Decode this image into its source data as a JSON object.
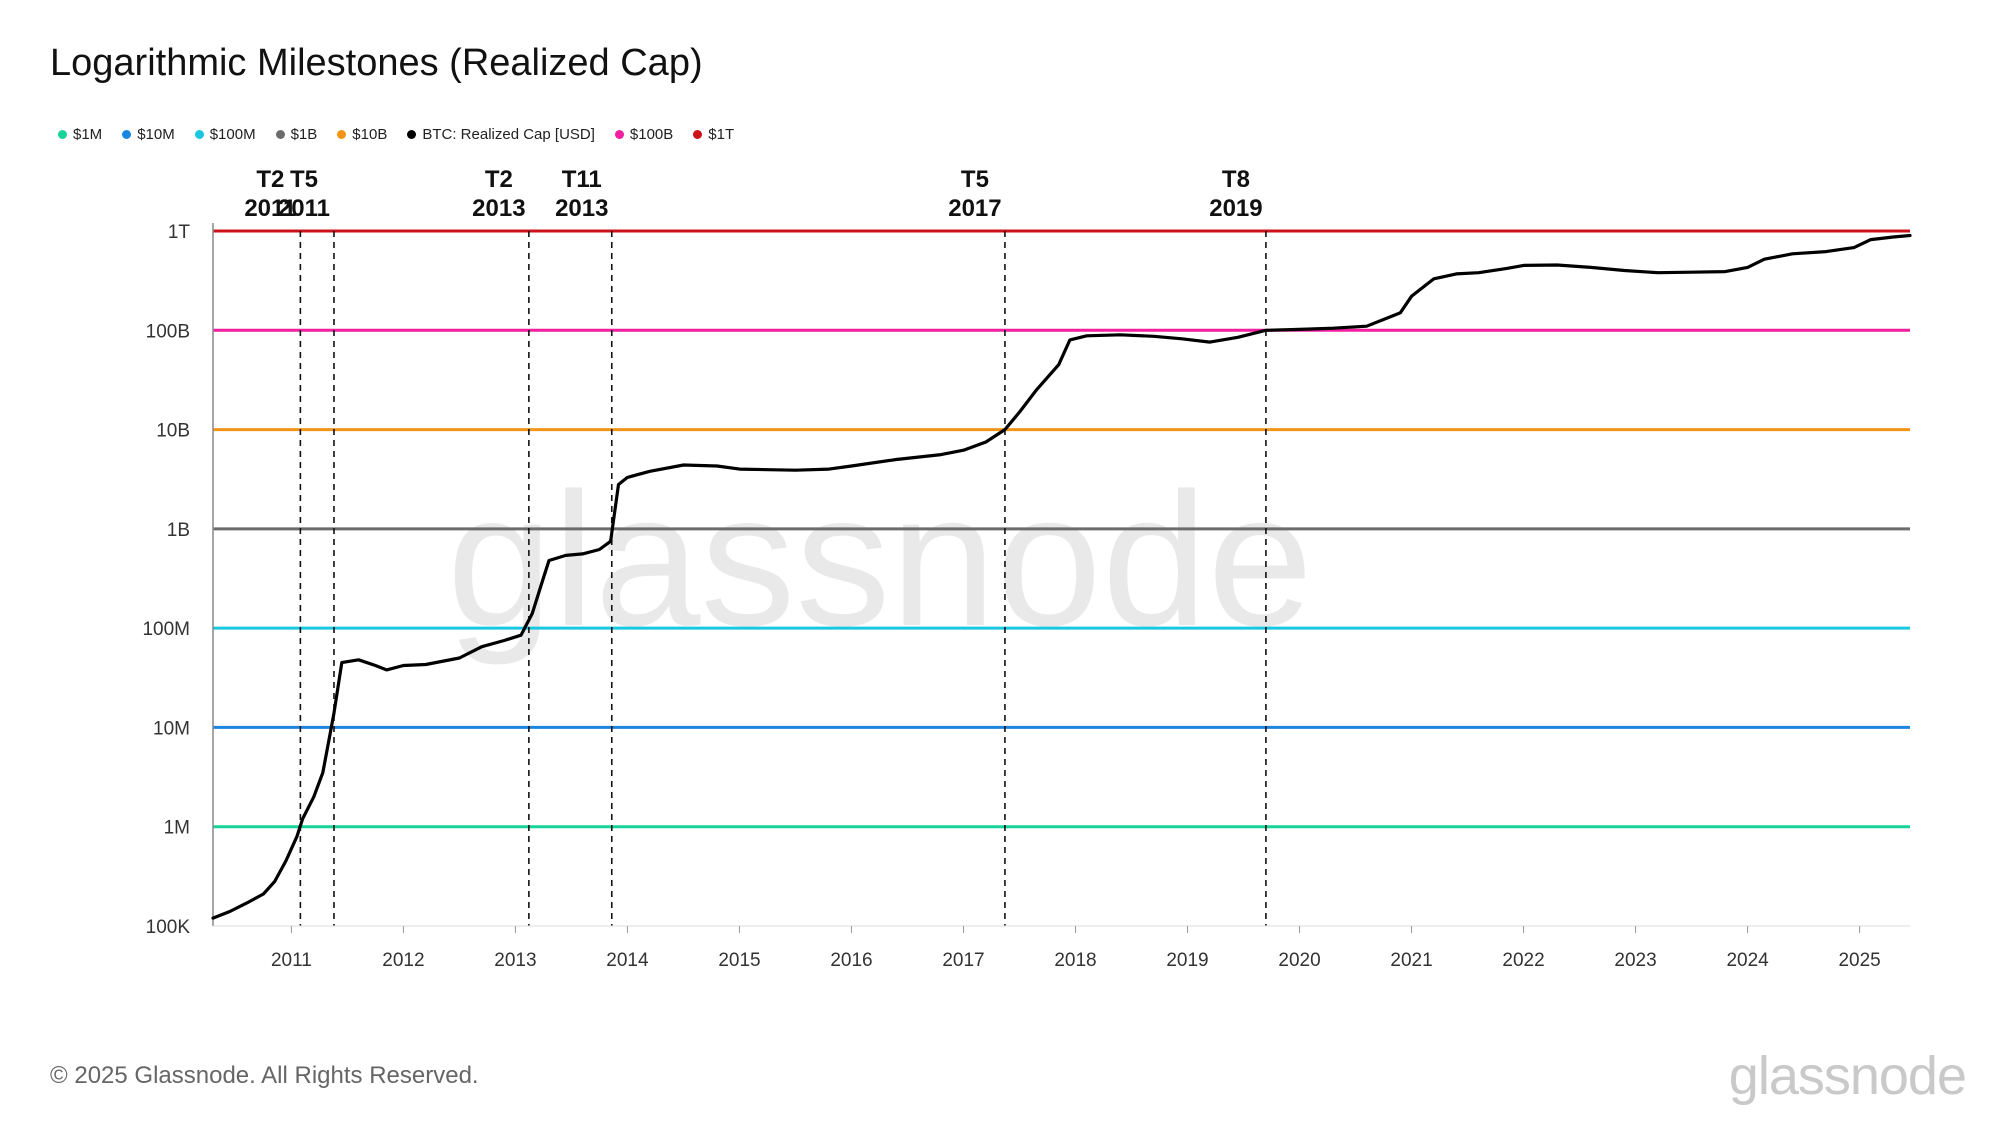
{
  "title": "Logarithmic Milestones (Realized Cap)",
  "watermark": "glassnode",
  "footer": {
    "copyright": "© 2025 Glassnode. All Rights Reserved.",
    "brand": "glassnode"
  },
  "legend": [
    {
      "label": "$1M",
      "color": "#16d39a"
    },
    {
      "label": "$10M",
      "color": "#1b86e0"
    },
    {
      "label": "$100M",
      "color": "#19c7e0"
    },
    {
      "label": "$1B",
      "color": "#6b6b6b"
    },
    {
      "label": "$10B",
      "color": "#f39416"
    },
    {
      "label": "BTC: Realized Cap [USD]",
      "color": "#000000"
    },
    {
      "label": "$100B",
      "color": "#f21fa0"
    },
    {
      "label": "$1T",
      "color": "#cc1119"
    }
  ],
  "chart_data": {
    "type": "line",
    "title": "Logarithmic Milestones (Realized Cap)",
    "xlabel": "",
    "ylabel": "",
    "y_scale": "log",
    "xlim": [
      2010.3,
      2025.45
    ],
    "ylim": [
      100000,
      1000000000000
    ],
    "x_ticks": [
      "2011",
      "2012",
      "2013",
      "2014",
      "2015",
      "2016",
      "2017",
      "2018",
      "2019",
      "2020",
      "2021",
      "2022",
      "2023",
      "2024",
      "2025"
    ],
    "y_ticks": [
      {
        "value": 100000,
        "label": "100K"
      },
      {
        "value": 1000000,
        "label": "1M"
      },
      {
        "value": 10000000,
        "label": "10M"
      },
      {
        "value": 100000000,
        "label": "100M"
      },
      {
        "value": 1000000000,
        "label": "1B"
      },
      {
        "value": 10000000000,
        "label": "10B"
      },
      {
        "value": 100000000000,
        "label": "100B"
      },
      {
        "value": 1000000000000,
        "label": "1T"
      }
    ],
    "grid": false,
    "legend_position": "top-left",
    "thresholds": [
      {
        "name": "$1M",
        "value": 1000000,
        "color": "#16d39a"
      },
      {
        "name": "$10M",
        "value": 10000000,
        "color": "#1b86e0"
      },
      {
        "name": "$100M",
        "value": 100000000,
        "color": "#19c7e0"
      },
      {
        "name": "$1B",
        "value": 1000000000,
        "color": "#6b6b6b"
      },
      {
        "name": "$10B",
        "value": 10000000000,
        "color": "#f39416"
      },
      {
        "name": "$100B",
        "value": 100000000000,
        "color": "#f21fa0"
      },
      {
        "name": "$1T",
        "value": 1000000000000,
        "color": "#cc1119"
      }
    ],
    "events": [
      {
        "line1": "T2",
        "line2": "2011",
        "x": 2011.08
      },
      {
        "line1": "T5",
        "line2": "2011",
        "x": 2011.38
      },
      {
        "line1": "T2",
        "line2": "2013",
        "x": 2013.12
      },
      {
        "line1": "T11",
        "line2": "2013",
        "x": 2013.86
      },
      {
        "line1": "T5",
        "line2": "2017",
        "x": 2017.37
      },
      {
        "line1": "T8",
        "line2": "2019",
        "x": 2019.7
      }
    ],
    "series": [
      {
        "name": "BTC: Realized Cap [USD]",
        "color": "#000000",
        "points": [
          [
            2010.3,
            120000
          ],
          [
            2010.45,
            140000
          ],
          [
            2010.6,
            170000
          ],
          [
            2010.75,
            210000
          ],
          [
            2010.85,
            280000
          ],
          [
            2010.95,
            450000
          ],
          [
            2011.05,
            800000
          ],
          [
            2011.1,
            1200000
          ],
          [
            2011.2,
            2000000
          ],
          [
            2011.28,
            3500000
          ],
          [
            2011.34,
            8000000
          ],
          [
            2011.38,
            14000000
          ],
          [
            2011.45,
            45000000
          ],
          [
            2011.6,
            48000000
          ],
          [
            2011.75,
            42000000
          ],
          [
            2011.85,
            38000000
          ],
          [
            2012.0,
            42000000
          ],
          [
            2012.2,
            43000000
          ],
          [
            2012.5,
            50000000
          ],
          [
            2012.7,
            65000000
          ],
          [
            2012.9,
            75000000
          ],
          [
            2013.05,
            85000000
          ],
          [
            2013.15,
            140000000
          ],
          [
            2013.25,
            320000000
          ],
          [
            2013.3,
            480000000
          ],
          [
            2013.45,
            540000000
          ],
          [
            2013.6,
            560000000
          ],
          [
            2013.75,
            620000000
          ],
          [
            2013.85,
            750000000
          ],
          [
            2013.92,
            2800000000
          ],
          [
            2014.0,
            3300000000
          ],
          [
            2014.2,
            3800000000
          ],
          [
            2014.5,
            4400000000
          ],
          [
            2014.8,
            4300000000
          ],
          [
            2015.0,
            4000000000
          ],
          [
            2015.5,
            3900000000
          ],
          [
            2015.8,
            4000000000
          ],
          [
            2016.0,
            4300000000
          ],
          [
            2016.4,
            5000000000
          ],
          [
            2016.8,
            5600000000
          ],
          [
            2017.0,
            6200000000
          ],
          [
            2017.2,
            7500000000
          ],
          [
            2017.37,
            10000000000
          ],
          [
            2017.5,
            15000000000
          ],
          [
            2017.65,
            25000000000
          ],
          [
            2017.85,
            45000000000
          ],
          [
            2017.95,
            80000000000
          ],
          [
            2018.1,
            88000000000
          ],
          [
            2018.4,
            90000000000
          ],
          [
            2018.7,
            87000000000
          ],
          [
            2018.95,
            82000000000
          ],
          [
            2019.2,
            76000000000
          ],
          [
            2019.45,
            85000000000
          ],
          [
            2019.7,
            100000000000
          ],
          [
            2020.0,
            102000000000
          ],
          [
            2020.3,
            105000000000
          ],
          [
            2020.6,
            110000000000
          ],
          [
            2020.9,
            150000000000
          ],
          [
            2021.0,
            220000000000
          ],
          [
            2021.2,
            330000000000
          ],
          [
            2021.4,
            370000000000
          ],
          [
            2021.6,
            380000000000
          ],
          [
            2021.85,
            420000000000
          ],
          [
            2022.0,
            450000000000
          ],
          [
            2022.3,
            455000000000
          ],
          [
            2022.6,
            430000000000
          ],
          [
            2022.9,
            400000000000
          ],
          [
            2023.2,
            380000000000
          ],
          [
            2023.5,
            385000000000
          ],
          [
            2023.8,
            390000000000
          ],
          [
            2024.0,
            430000000000
          ],
          [
            2024.15,
            520000000000
          ],
          [
            2024.4,
            590000000000
          ],
          [
            2024.7,
            620000000000
          ],
          [
            2024.95,
            680000000000
          ],
          [
            2025.1,
            820000000000
          ],
          [
            2025.3,
            870000000000
          ],
          [
            2025.45,
            900000000000
          ]
        ]
      }
    ]
  }
}
